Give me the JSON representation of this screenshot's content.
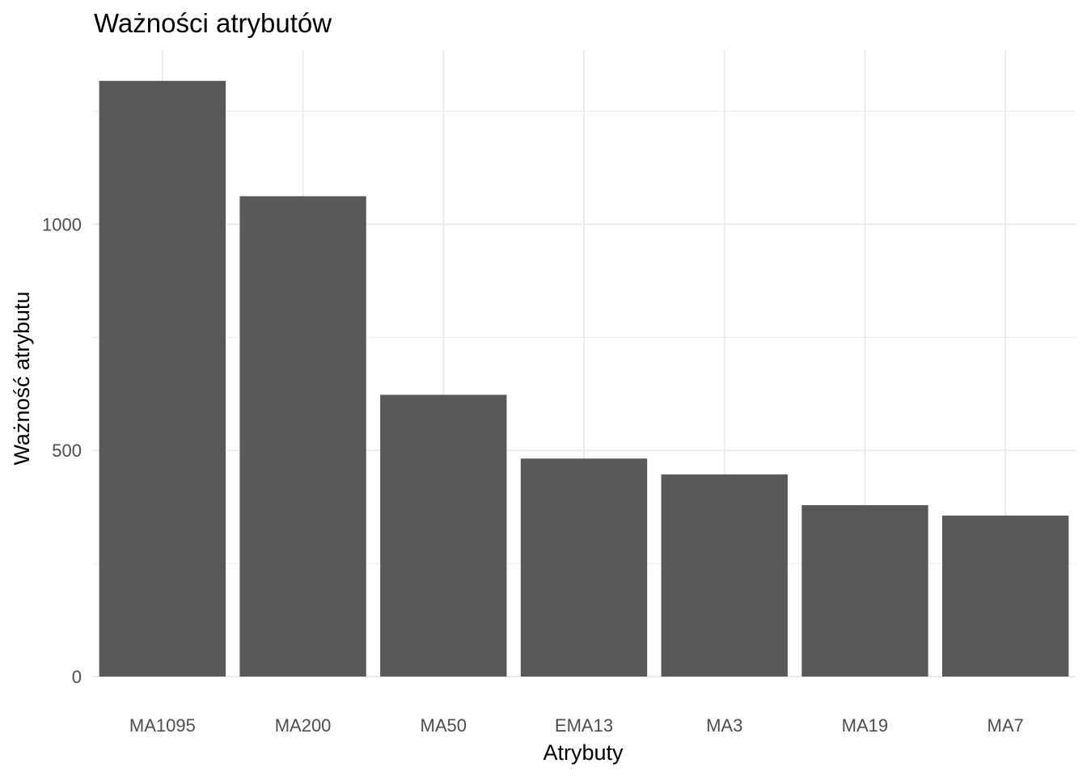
{
  "chart_data": {
    "type": "bar",
    "title": "Ważności atrybutów",
    "xlabel": "Atrybuty",
    "ylabel": "Ważność atrybutu",
    "categories": [
      "MA1095",
      "MA200",
      "MA50",
      "EMA13",
      "MA3",
      "MA19",
      "MA7"
    ],
    "values": [
      1317,
      1062,
      623,
      482,
      447,
      379,
      356
    ],
    "ylim": [
      0,
      1385
    ],
    "yticks": [
      0,
      500,
      1000
    ],
    "yticks_minor": [
      250,
      750,
      1250
    ],
    "grid": true,
    "legend": "none",
    "bar_color": "#595959",
    "grid_color": "#ebebeb"
  }
}
